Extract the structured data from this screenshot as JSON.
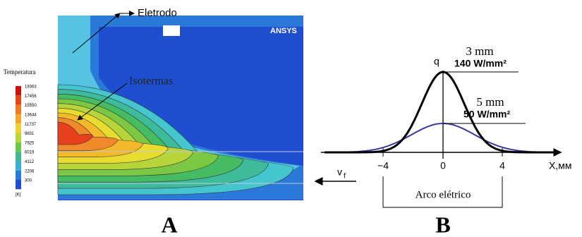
{
  "panel_a": {
    "label": "A",
    "electrode_label": "Eletrodo",
    "logo": "ANSYS",
    "isotherm_label": "Isotermas",
    "legend": {
      "title": "Temperatura",
      "values": [
        "19363",
        "17456",
        "15550",
        "13644",
        "11737",
        "9831",
        "7925",
        "6019",
        "4112",
        "2206",
        "300"
      ],
      "unit": "[K]"
    }
  },
  "panel_b": {
    "label": "B",
    "y_axis_label": "q",
    "x_axis_label": "X,мм",
    "x_ticks": [
      "−4",
      "0",
      "4"
    ],
    "curve_1": {
      "width": "3 mm",
      "peak": "140 W/mm²"
    },
    "curve_2": {
      "width": "5 mm",
      "peak": "50 W/mm²"
    },
    "velocity": {
      "base": "v",
      "sub": "f"
    },
    "arc_label": "Arco elétrico"
  }
}
